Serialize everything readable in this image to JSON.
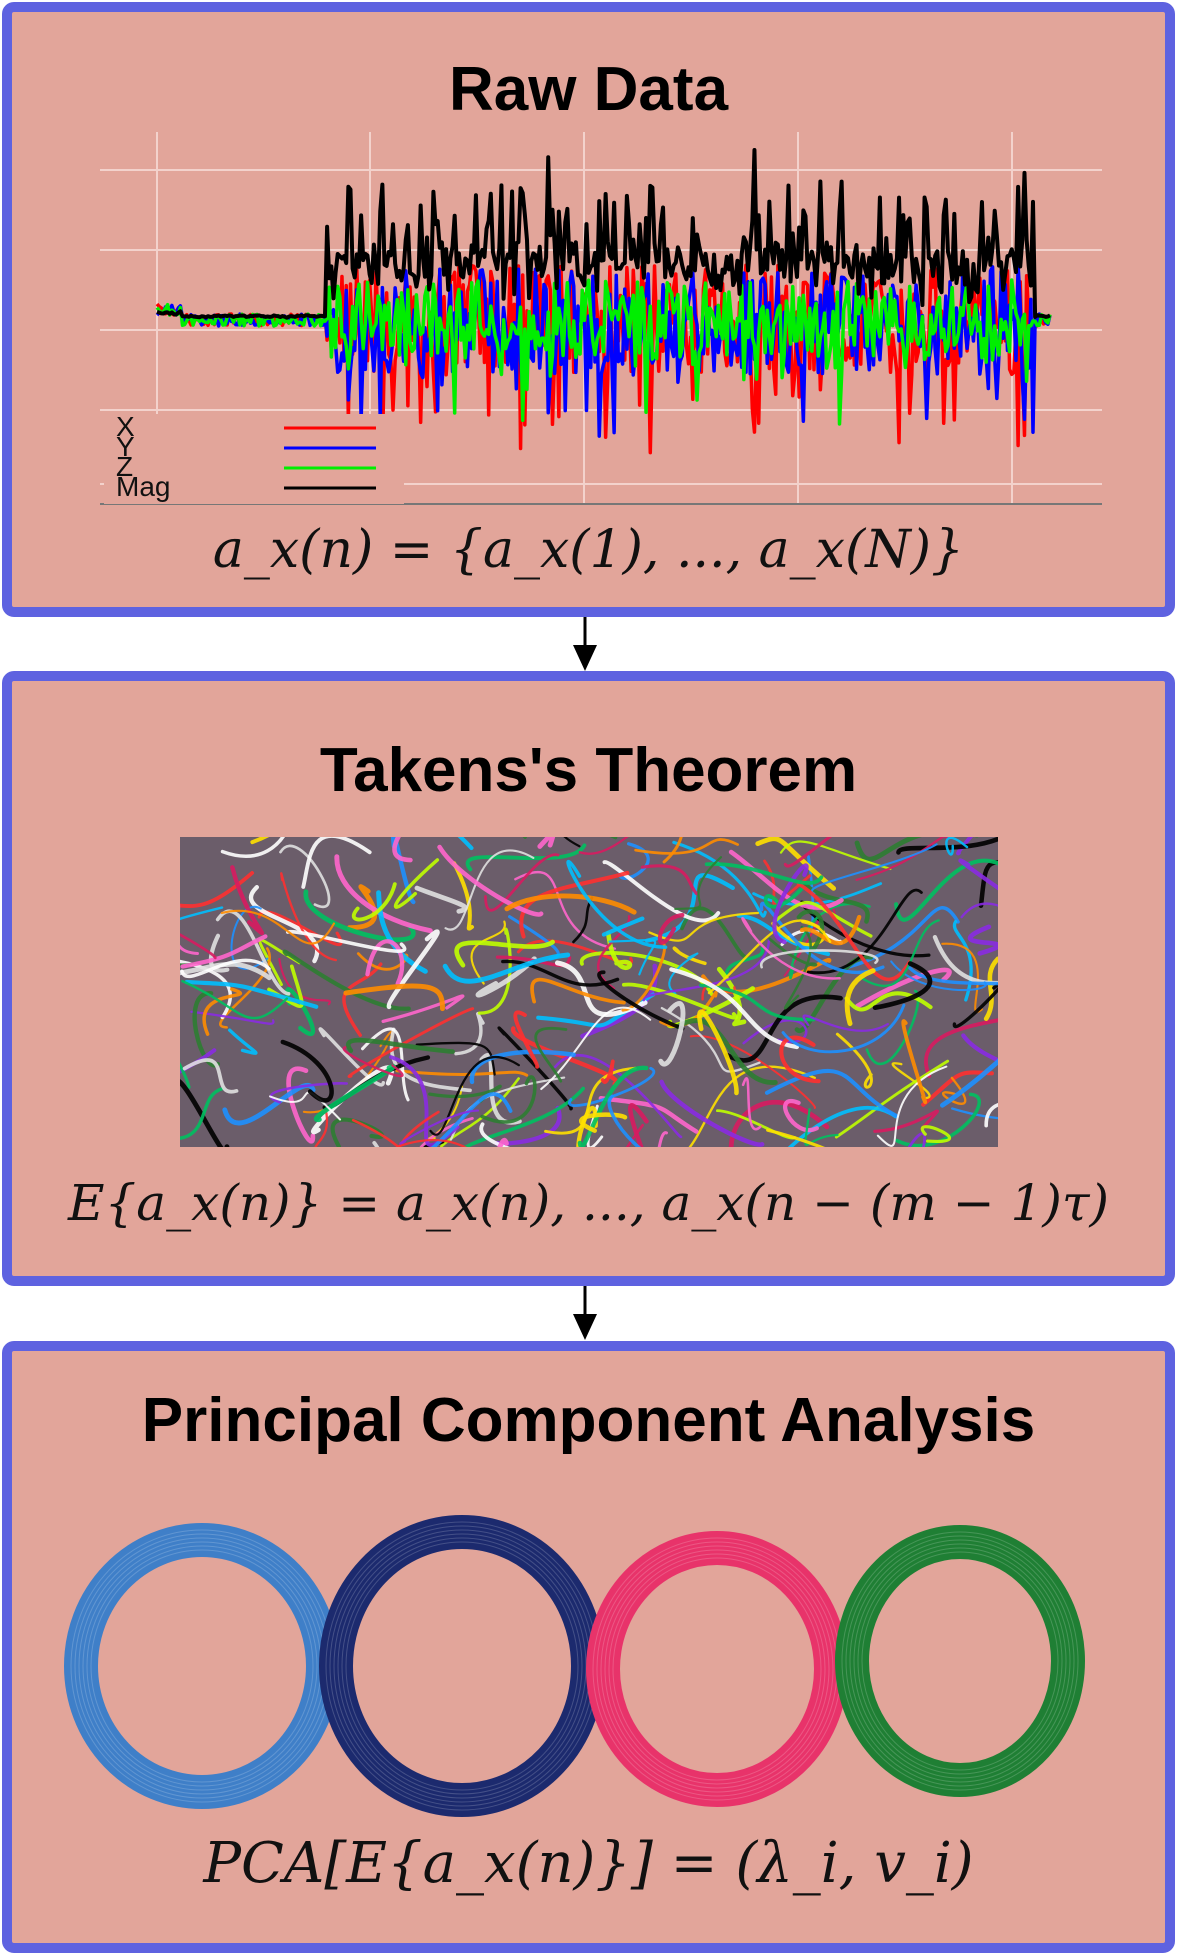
{
  "panels": {
    "raw": {
      "title": "Raw Data",
      "formula": "a_x(n) = {a_x(1), ..., a_x(N)}",
      "legend": [
        "X",
        "Y",
        "Z",
        "Mag"
      ]
    },
    "takens": {
      "title": "Takens's Theorem",
      "formula": "E{a_x(n)} = a_x(n), ..., a_x(n − (m − 1)τ)"
    },
    "pca": {
      "title": "Principal Component Analysis",
      "formula": "PCA[E{a_x(n)}] = (λ_i, v_i)"
    }
  },
  "colors": {
    "panel_bg": "#e2a59a",
    "panel_border": "#5e62e0",
    "x_series": "#ff0000",
    "y_series": "#0000ff",
    "z_series": "#00ee00",
    "mag_series": "#000000",
    "ring_colors": [
      "#3f7fc8",
      "#1c2a6e",
      "#e8336a",
      "#1f7f34"
    ]
  },
  "icons": [
    "arrow-down-icon",
    "yarn-tangle-image",
    "yarn-ring-image"
  ]
}
